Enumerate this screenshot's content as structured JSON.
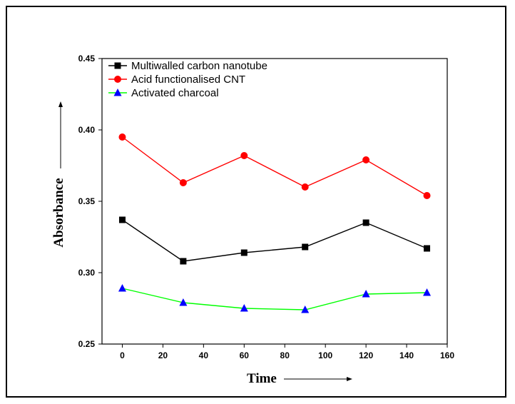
{
  "chart_data": {
    "type": "line",
    "title": "",
    "xlabel": "Time",
    "ylabel": "Absorbance",
    "x": [
      0,
      30,
      60,
      90,
      120,
      150
    ],
    "xlim": [
      -10,
      160
    ],
    "ylim": [
      0.25,
      0.45
    ],
    "xticks": [
      0,
      20,
      40,
      60,
      80,
      100,
      120,
      140,
      160
    ],
    "xtick_labels": [
      "0",
      "20",
      "40",
      "60",
      "80",
      "100",
      "120",
      "140",
      "160"
    ],
    "yticks": [
      0.25,
      0.3,
      0.35,
      0.4,
      0.45
    ],
    "ytick_labels": [
      "0.25",
      "0.30",
      "0.35",
      "0.40",
      "0.45"
    ],
    "grid": false,
    "legend_position": "top-left",
    "series": [
      {
        "name": "Multiwalled carbon nanotube",
        "values": [
          0.337,
          0.308,
          0.314,
          0.318,
          0.335,
          0.317
        ],
        "color": "#000000",
        "marker": "square"
      },
      {
        "name": "Acid functionalised CNT",
        "values": [
          0.395,
          0.363,
          0.382,
          0.36,
          0.379,
          0.354
        ],
        "color": "#ff0000",
        "marker": "circle"
      },
      {
        "name": "Activated charcoal",
        "values": [
          0.289,
          0.279,
          0.275,
          0.274,
          0.285,
          0.286
        ],
        "color": "#00ff00",
        "marker_color": "#0000ff",
        "marker": "triangle"
      }
    ]
  }
}
